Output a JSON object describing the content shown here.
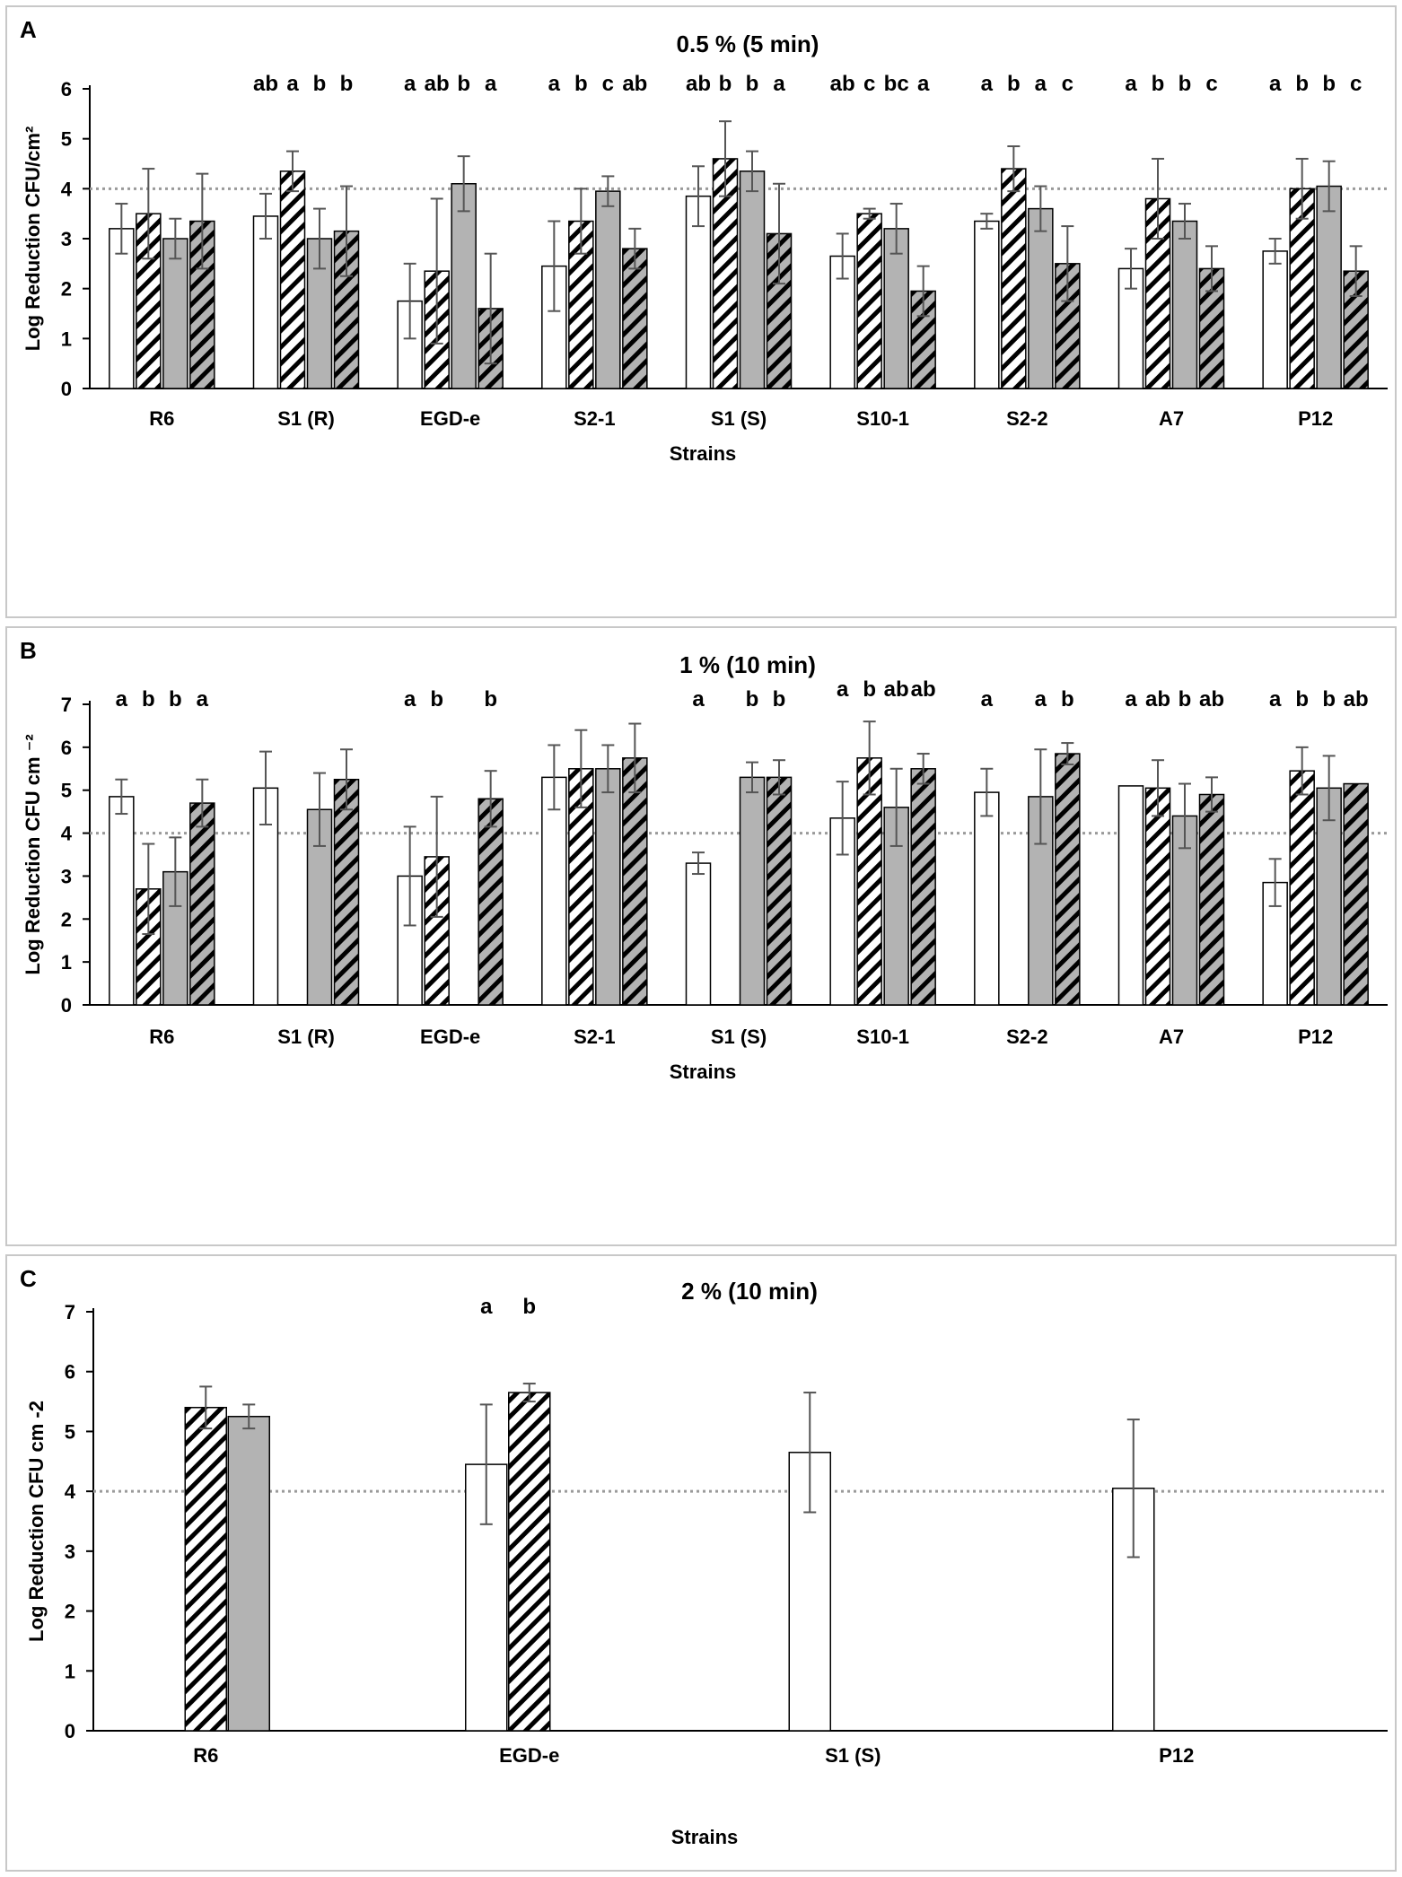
{
  "colors": {
    "white_bar": "#ffffff",
    "grey_bar": "#b3b3b3",
    "stroke": "#000000",
    "ref_line": "#9a9a9a",
    "errbar": "#555555"
  },
  "chart_data": [
    {
      "panel": "A",
      "type": "bar",
      "title": "0.5 % (5 min)",
      "xlabel": "Strains",
      "ylabel": "Log Reduction CFU/cm²",
      "ylim": [
        0,
        6
      ],
      "yticks": [
        0,
        1,
        2,
        3,
        4,
        5,
        6
      ],
      "reference_line": 4,
      "categories": [
        "R6",
        "S1 (R)",
        "EGD-e",
        "S2-1",
        "S1 (S)",
        "S10-1",
        "S2-2",
        "A7",
        "P12"
      ],
      "series": [
        {
          "name": "series1",
          "style": "white",
          "values": [
            3.2,
            3.45,
            1.75,
            2.45,
            3.85,
            2.65,
            3.35,
            2.4,
            2.75
          ],
          "errors": [
            0.5,
            0.45,
            0.75,
            0.9,
            0.6,
            0.45,
            0.15,
            0.4,
            0.25
          ]
        },
        {
          "name": "series2",
          "style": "white-hatched",
          "values": [
            3.5,
            4.35,
            2.35,
            3.35,
            4.6,
            3.5,
            4.4,
            3.8,
            4.0
          ],
          "errors": [
            0.9,
            0.4,
            1.45,
            0.65,
            0.75,
            0.1,
            0.45,
            0.8,
            0.6
          ]
        },
        {
          "name": "series3",
          "style": "grey",
          "values": [
            3.0,
            3.0,
            4.1,
            3.95,
            4.35,
            3.2,
            3.6,
            3.35,
            4.05
          ],
          "errors": [
            0.4,
            0.6,
            0.55,
            0.3,
            0.4,
            0.5,
            0.45,
            0.35,
            0.5
          ]
        },
        {
          "name": "series4",
          "style": "grey-hatched",
          "values": [
            3.35,
            3.15,
            1.6,
            2.8,
            3.1,
            1.95,
            2.5,
            2.4,
            2.35
          ],
          "errors": [
            0.95,
            0.9,
            1.1,
            0.4,
            1.0,
            0.5,
            0.75,
            0.45,
            0.5
          ]
        }
      ],
      "annotations": [
        [
          "",
          "",
          "",
          ""
        ],
        [
          "ab",
          "a",
          "b",
          "b"
        ],
        [
          "a",
          "ab",
          "b",
          "a"
        ],
        [
          "a",
          "b",
          "c",
          "ab"
        ],
        [
          "ab",
          "b",
          "b",
          "a"
        ],
        [
          "ab",
          "c",
          "bc",
          "a"
        ],
        [
          "a",
          "b",
          "a",
          "c"
        ],
        [
          "a",
          "b",
          "b",
          "c"
        ],
        [
          "a",
          "b",
          "b",
          "c"
        ]
      ]
    },
    {
      "panel": "B",
      "type": "bar",
      "title": "1 % (10 min)",
      "xlabel": "Strains",
      "ylabel": "Log Reduction CFU cm ⁻²",
      "ylim": [
        0,
        7
      ],
      "yticks": [
        0,
        1,
        2,
        3,
        4,
        5,
        6,
        7
      ],
      "reference_line": 4,
      "categories": [
        "R6",
        "S1 (R)",
        "EGD-e",
        "S2-1",
        "S1 (S)",
        "S10-1",
        "S2-2",
        "A7",
        "P12"
      ],
      "series": [
        {
          "name": "series1",
          "style": "white",
          "values": [
            4.85,
            5.05,
            3.0,
            5.3,
            3.3,
            4.35,
            4.95,
            5.1,
            2.85
          ],
          "errors": [
            0.4,
            0.85,
            1.15,
            0.75,
            0.25,
            0.85,
            0.55,
            0.0,
            0.55
          ]
        },
        {
          "name": "series2",
          "style": "white-hatched",
          "values": [
            2.7,
            null,
            3.45,
            5.5,
            null,
            5.75,
            null,
            5.05,
            5.45
          ],
          "errors": [
            1.05,
            null,
            1.4,
            0.9,
            null,
            0.85,
            null,
            0.65,
            0.55
          ]
        },
        {
          "name": "series3",
          "style": "grey",
          "values": [
            3.1,
            4.55,
            null,
            5.5,
            5.3,
            4.6,
            4.85,
            4.4,
            5.05
          ],
          "errors": [
            0.8,
            0.85,
            null,
            0.55,
            0.35,
            0.9,
            1.1,
            0.75,
            0.75
          ]
        },
        {
          "name": "series4",
          "style": "grey-hatched",
          "values": [
            4.7,
            5.25,
            4.8,
            5.75,
            5.3,
            5.5,
            5.85,
            4.9,
            5.15
          ],
          "errors": [
            0.55,
            0.7,
            0.65,
            0.8,
            0.4,
            0.35,
            0.25,
            0.4,
            0.0
          ]
        }
      ],
      "annotations": [
        [
          "a",
          "b",
          "b",
          "a"
        ],
        [
          "",
          "",
          "",
          ""
        ],
        [
          "a",
          "b",
          "",
          "b"
        ],
        [
          "",
          "",
          "",
          ""
        ],
        [
          "a",
          "",
          "b",
          "b"
        ],
        [
          "a",
          "b",
          "ab",
          "ab"
        ],
        [
          "a",
          "",
          "a",
          "b"
        ],
        [
          "a",
          "ab",
          "b",
          "ab"
        ],
        [
          "a",
          "b",
          "b",
          "ab"
        ]
      ]
    },
    {
      "panel": "C",
      "type": "bar",
      "title": "2 % (10 min)",
      "xlabel": "Strains",
      "ylabel": "Log Reduction CFU cm -2",
      "ylim": [
        0,
        7
      ],
      "yticks": [
        0,
        1,
        2,
        3,
        4,
        5,
        6,
        7
      ],
      "reference_line": 4,
      "categories": [
        "R6",
        "EGD-e",
        "S1 (S)",
        "P12"
      ],
      "series": [
        {
          "name": "series1",
          "style": "white",
          "values": [
            null,
            4.45,
            4.65,
            4.05
          ],
          "errors": [
            null,
            1.0,
            1.0,
            1.15
          ]
        },
        {
          "name": "series2",
          "style": "white-hatched",
          "values": [
            5.4,
            5.65,
            null,
            null
          ],
          "errors": [
            0.35,
            0.15,
            null,
            null
          ]
        },
        {
          "name": "series3",
          "style": "grey",
          "values": [
            5.25,
            null,
            null,
            null
          ],
          "errors": [
            0.2,
            null,
            null,
            null
          ]
        }
      ],
      "annotations": [
        [
          "",
          "",
          ""
        ],
        [
          "a",
          "b",
          ""
        ],
        [
          "",
          "",
          ""
        ],
        [
          "",
          "",
          ""
        ]
      ]
    }
  ]
}
